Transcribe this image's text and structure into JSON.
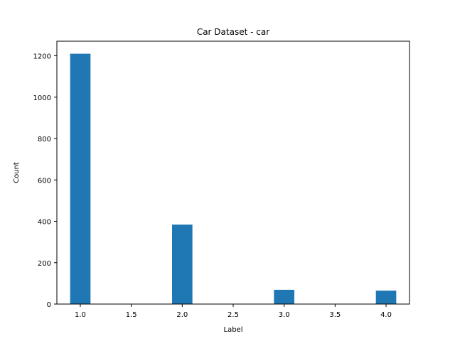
{
  "chart_data": {
    "type": "bar",
    "title": "Car Dataset - car",
    "xlabel": "Label",
    "ylabel": "Count",
    "bin_width": 0.2,
    "bars": [
      {
        "x": 1.0,
        "value": 1210
      },
      {
        "x": 2.0,
        "value": 384
      },
      {
        "x": 3.0,
        "value": 69
      },
      {
        "x": 4.0,
        "value": 65
      }
    ],
    "xlim": [
      0.77,
      4.23
    ],
    "ylim": [
      0,
      1270.5
    ],
    "xticks": [
      1.0,
      1.5,
      2.0,
      2.5,
      3.0,
      3.5,
      4.0
    ],
    "xtick_labels": [
      "1.0",
      "1.5",
      "2.0",
      "2.5",
      "3.0",
      "3.5",
      "4.0"
    ],
    "yticks": [
      0,
      200,
      400,
      600,
      800,
      1000,
      1200
    ],
    "ytick_labels": [
      "0",
      "200",
      "400",
      "600",
      "800",
      "1000",
      "1200"
    ],
    "grid": false,
    "bar_color": "#1f77b4"
  }
}
